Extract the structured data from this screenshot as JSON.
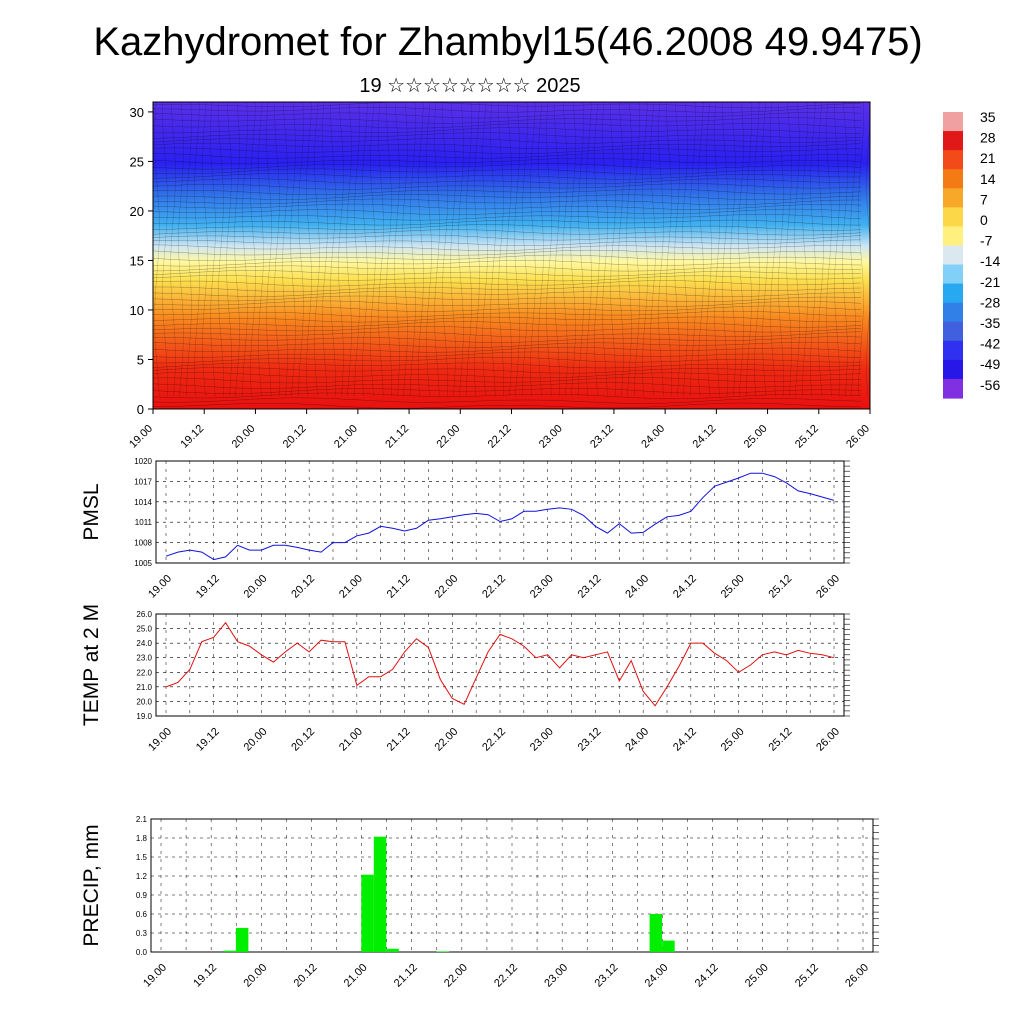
{
  "header": {
    "title": "Kazhydromet for Zhambyl15(46.2008 49.9475)",
    "subtitle": "19 ☆☆☆☆☆☆☆☆ 2025"
  },
  "x_ticks": [
    "19.00",
    "19.12",
    "20.00",
    "20.12",
    "21.00",
    "21.12",
    "22.00",
    "22.12",
    "23.00",
    "23.12",
    "24.00",
    "24.12",
    "25.00",
    "25.12",
    "26.00"
  ],
  "chart_data": [
    {
      "type": "heatmap",
      "title": "",
      "xlabel": "",
      "ylabel": "",
      "x_ticks": [
        "19.00",
        "19.12",
        "20.00",
        "20.12",
        "21.00",
        "21.12",
        "22.00",
        "22.12",
        "23.00",
        "23.12",
        "24.00",
        "24.12",
        "25.00",
        "25.12",
        "26.00"
      ],
      "y_ticks": [
        0,
        5,
        10,
        15,
        20,
        25,
        30
      ],
      "ylim": [
        0,
        31
      ],
      "colorbar_labels": [
        35,
        28,
        21,
        14,
        7,
        0,
        -7,
        -14,
        -21,
        -28,
        -35,
        -42,
        -49,
        -56
      ],
      "colorbar_colors": [
        "#f0a0a0",
        "#e01818",
        "#f24a18",
        "#f47a14",
        "#f8a828",
        "#fcd848",
        "#fff080",
        "#dce8f0",
        "#80d0f8",
        "#28a8f0",
        "#3080e8",
        "#4060e0",
        "#3030f0",
        "#2818e8",
        "#8030e0"
      ],
      "approx_temperature_profile": [
        {
          "y": 0,
          "value": 30
        },
        {
          "y": 5,
          "value": 25
        },
        {
          "y": 10,
          "value": 14
        },
        {
          "y": 15,
          "value": 0
        },
        {
          "y": 17,
          "value": -14
        },
        {
          "y": 20,
          "value": -35
        },
        {
          "y": 25,
          "value": -56
        },
        {
          "y": 30,
          "value": -56
        }
      ]
    },
    {
      "type": "line",
      "ylabel": "PMSL",
      "color": "#1010e0",
      "ylim": [
        1005,
        1020
      ],
      "y_ticks": [
        1005,
        1008,
        1011,
        1014,
        1017,
        1020
      ],
      "x": [
        0,
        3,
        6,
        9,
        12,
        15,
        18,
        21,
        24,
        27,
        30,
        33,
        36,
        39,
        42,
        45,
        48,
        51,
        54,
        57,
        60,
        63,
        66,
        69,
        72,
        75,
        78,
        81,
        84,
        87,
        90,
        93,
        96,
        99,
        102,
        105,
        108,
        111,
        114,
        117,
        120,
        123,
        126,
        129,
        132,
        135,
        138,
        141,
        144,
        147,
        150,
        153,
        156,
        159,
        162,
        165,
        168
      ],
      "values": [
        1006.0,
        1006.6,
        1006.9,
        1006.6,
        1005.5,
        1005.9,
        1007.6,
        1006.9,
        1006.9,
        1007.6,
        1007.6,
        1007.3,
        1006.9,
        1006.6,
        1008.0,
        1008.0,
        1009.0,
        1009.4,
        1010.4,
        1010.1,
        1009.7,
        1010.1,
        1011.3,
        1011.5,
        1011.8,
        1012.1,
        1012.3,
        1012.1,
        1011.1,
        1011.5,
        1012.6,
        1012.6,
        1012.9,
        1013.1,
        1012.9,
        1012.0,
        1010.4,
        1009.4,
        1010.8,
        1009.4,
        1009.5,
        1010.7,
        1011.8,
        1012.0,
        1012.6,
        1014.6,
        1016.3,
        1016.9,
        1017.5,
        1018.2,
        1018.2,
        1017.7,
        1016.8,
        1015.6,
        1015.2,
        1014.7,
        1014.2
      ]
    },
    {
      "type": "line",
      "ylabel": "TEMP at 2 M",
      "color": "#e01010",
      "ylim": [
        19.0,
        26.0
      ],
      "y_ticks": [
        19.0,
        20.0,
        21.0,
        22.0,
        23.0,
        24.0,
        25.0,
        26.0
      ],
      "x": [
        0,
        3,
        6,
        9,
        12,
        15,
        18,
        21,
        24,
        27,
        30,
        33,
        36,
        39,
        42,
        45,
        48,
        51,
        54,
        57,
        60,
        63,
        66,
        69,
        72,
        75,
        78,
        81,
        84,
        87,
        90,
        93,
        96,
        99,
        102,
        105,
        108,
        111,
        114,
        117,
        120,
        123,
        126,
        129,
        132,
        135,
        138,
        141,
        144,
        147,
        150,
        153,
        156,
        159,
        162,
        165,
        168
      ],
      "values": [
        21.0,
        21.3,
        22.2,
        24.1,
        24.4,
        25.4,
        24.1,
        23.8,
        23.2,
        22.7,
        23.4,
        24.0,
        23.4,
        24.2,
        24.1,
        24.1,
        21.1,
        21.7,
        21.7,
        22.2,
        23.4,
        24.3,
        23.7,
        21.5,
        20.2,
        19.8,
        21.6,
        23.4,
        24.6,
        24.3,
        23.8,
        23.0,
        23.2,
        22.3,
        23.2,
        23.0,
        23.2,
        23.4,
        21.4,
        22.8,
        20.7,
        19.7,
        21.0,
        22.4,
        24.0,
        24.0,
        23.3,
        22.8,
        22.0,
        22.5,
        23.2,
        23.4,
        23.2,
        23.5,
        23.3,
        23.2,
        23.0
      ]
    },
    {
      "type": "bar",
      "ylabel": "PRECIP, mm",
      "color": "#00ee00",
      "ylim": [
        0.0,
        2.1
      ],
      "y_ticks": [
        "0.0",
        "0.3",
        "0.6",
        "0.9",
        "1.2",
        "1.5",
        "1.8",
        "2.1"
      ],
      "bars": [
        {
          "x": 15,
          "value": 0.02
        },
        {
          "x": 18,
          "value": 0.38
        },
        {
          "x": 48,
          "value": 1.22
        },
        {
          "x": 51,
          "value": 1.82
        },
        {
          "x": 54,
          "value": 0.05
        },
        {
          "x": 66,
          "value": 0.01
        },
        {
          "x": 117,
          "value": 0.6
        },
        {
          "x": 120,
          "value": 0.18
        }
      ]
    }
  ]
}
